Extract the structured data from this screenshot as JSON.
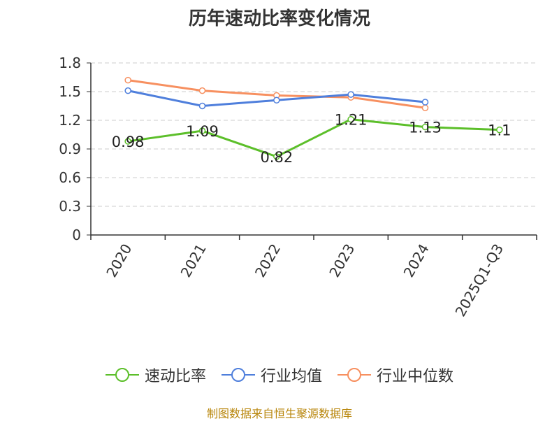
{
  "chart_data": {
    "type": "line",
    "title": "历年速动比率变化情况",
    "categories": [
      "2020",
      "2021",
      "2022",
      "2023",
      "2024",
      "2025Q1-Q3"
    ],
    "series": [
      {
        "name": "速动比率",
        "color": "#5cbf2a",
        "values": [
          0.98,
          1.09,
          0.82,
          1.21,
          1.13,
          1.1
        ],
        "labels": [
          "0.98",
          "1.09",
          "0.82",
          "1.21",
          "1.13",
          "1.1"
        ]
      },
      {
        "name": "行业均值",
        "color": "#4f7fdc",
        "values": [
          1.51,
          1.35,
          1.41,
          1.47,
          1.39,
          null
        ]
      },
      {
        "name": "行业中位数",
        "color": "#f79060",
        "values": [
          1.62,
          1.51,
          1.46,
          1.44,
          1.33,
          null
        ]
      }
    ],
    "yticks": [
      "0",
      "0.3",
      "0.6",
      "0.9",
      "1.2",
      "1.5",
      "1.8"
    ],
    "ylim": [
      0,
      1.8
    ],
    "grid": true,
    "legend_position": "bottom"
  },
  "source": "制图数据来自恒生聚源数据库"
}
